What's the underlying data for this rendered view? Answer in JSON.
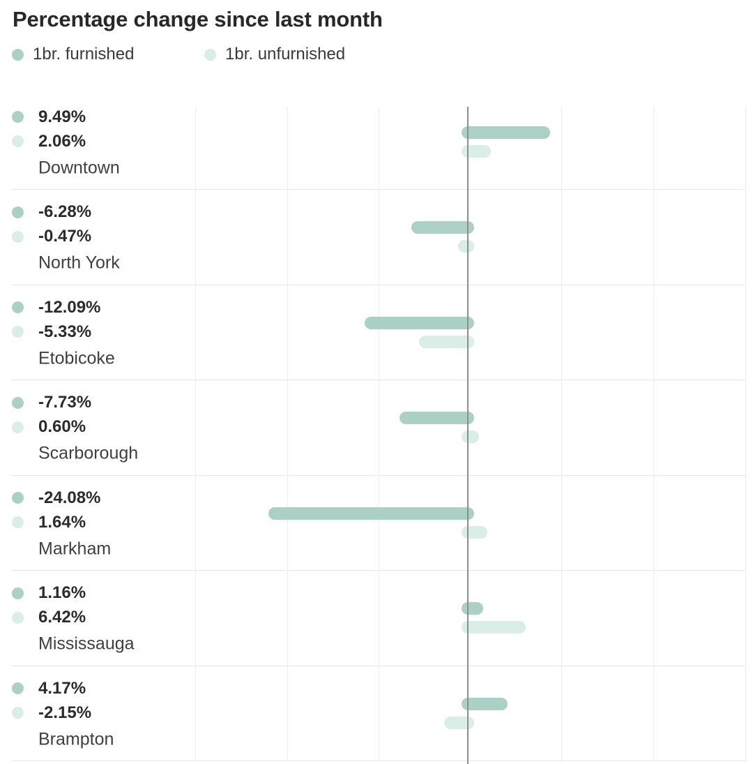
{
  "title": "Percentage change since last month",
  "legend": {
    "items": [
      {
        "label": "1br. furnished",
        "color": "#abd1c6"
      },
      {
        "label": "1br. unfurnished",
        "color": "#d8eee7"
      }
    ]
  },
  "colors": {
    "furnished": "#abd1c6",
    "unfurnished": "#d8eee7",
    "zero_line": "#8d8d8d",
    "gridline": "#ededed",
    "row_separator": "#e8e6e6",
    "value_text": "#2b2b2b",
    "region_text": "#3f3f3f"
  },
  "chart_data": {
    "type": "bar",
    "orientation": "horizontal",
    "title": "Percentage change since last month",
    "value_unit": "%",
    "categories": [
      "Downtown",
      "North York",
      "Etobicoke",
      "Scarborough",
      "Markham",
      "Mississauga",
      "Brampton"
    ],
    "series": [
      {
        "name": "1br. furnished",
        "color": "#abd1c6",
        "values": [
          9.49,
          -6.28,
          -12.09,
          -7.73,
          -24.08,
          1.16,
          4.17
        ],
        "labels": [
          "9.49%",
          "-6.28%",
          "-12.09%",
          "-7.73%",
          "-24.08%",
          "1.16%",
          "4.17%"
        ]
      },
      {
        "name": "1br. unfurnished",
        "color": "#d8eee7",
        "values": [
          2.06,
          -0.47,
          -5.33,
          0.6,
          1.64,
          6.42,
          -2.15
        ],
        "labels": [
          "2.06%",
          "-0.47%",
          "-5.33%",
          "0.60%",
          "1.64%",
          "6.42%",
          "-2.15%"
        ]
      }
    ],
    "axis": {
      "zero_line_shown": true,
      "tick_labels_shown": false,
      "gridlines_shown": true
    },
    "legend_position": "top"
  }
}
